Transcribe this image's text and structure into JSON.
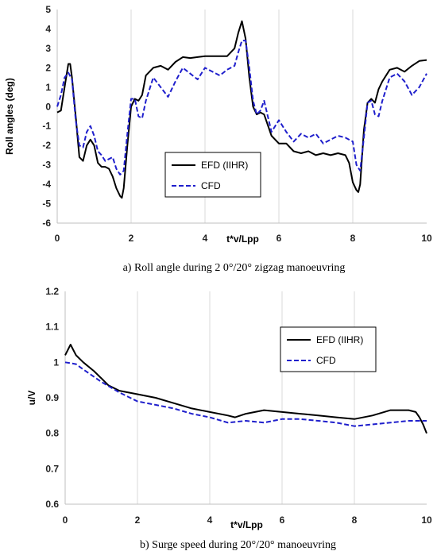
{
  "chart_data": [
    {
      "type": "line",
      "caption": "a) Roll angle during 2 0°/20° zigzag manoeuvring",
      "xlabel": "t*v/Lpp",
      "ylabel": "Roll angles (deg)",
      "xlim": [
        0,
        10
      ],
      "ylim": [
        -6,
        5
      ],
      "xticks": [
        "0",
        "2",
        "4",
        "6",
        "8",
        "10"
      ],
      "yticks": [
        "-6",
        "-5",
        "-4",
        "-3",
        "-2",
        "-1",
        "0",
        "1",
        "2",
        "3",
        "4",
        "5"
      ],
      "grid": "vertical",
      "legend_position": "lower-left",
      "series": [
        {
          "name": "EFD (IIHR)",
          "color": "#000000",
          "style": "solid",
          "x": [
            0,
            0.1,
            0.2,
            0.3,
            0.35,
            0.4,
            0.5,
            0.6,
            0.7,
            0.8,
            0.9,
            1.0,
            1.1,
            1.2,
            1.3,
            1.4,
            1.5,
            1.6,
            1.7,
            1.75,
            1.8,
            1.9,
            2.0,
            2.1,
            2.2,
            2.3,
            2.4,
            2.6,
            2.8,
            3.0,
            3.2,
            3.4,
            3.6,
            3.8,
            4.0,
            4.2,
            4.4,
            4.6,
            4.8,
            4.9,
            5.0,
            5.1,
            5.2,
            5.3,
            5.4,
            5.5,
            5.6,
            5.8,
            6.0,
            6.2,
            6.4,
            6.6,
            6.8,
            7.0,
            7.2,
            7.4,
            7.6,
            7.8,
            7.9,
            8.0,
            8.1,
            8.15,
            8.2,
            8.3,
            8.4,
            8.5,
            8.6,
            8.7,
            8.8,
            9.0,
            9.2,
            9.4,
            9.6,
            9.8,
            10.0
          ],
          "y": [
            -0.3,
            -0.2,
            1.0,
            2.2,
            2.2,
            1.5,
            -0.5,
            -2.6,
            -2.8,
            -2.0,
            -1.7,
            -2.0,
            -2.9,
            -3.1,
            -3.1,
            -3.2,
            -3.6,
            -4.2,
            -4.6,
            -4.7,
            -4.2,
            -2.0,
            0.0,
            0.4,
            0.3,
            0.6,
            1.6,
            2.0,
            2.1,
            1.9,
            2.3,
            2.55,
            2.5,
            2.55,
            2.6,
            2.6,
            2.6,
            2.6,
            3.0,
            3.8,
            4.4,
            3.5,
            1.5,
            0.0,
            -0.4,
            -0.3,
            -0.4,
            -1.5,
            -1.9,
            -1.9,
            -2.3,
            -2.4,
            -2.3,
            -2.5,
            -2.4,
            -2.5,
            -2.4,
            -2.5,
            -2.9,
            -3.9,
            -4.3,
            -4.4,
            -4.0,
            -1.2,
            0.2,
            0.4,
            0.2,
            0.9,
            1.3,
            1.9,
            2.0,
            1.8,
            2.1,
            2.35,
            2.4
          ]
        },
        {
          "name": "CFD",
          "color": "#1f1fcc",
          "style": "dashed",
          "x": [
            0,
            0.1,
            0.2,
            0.3,
            0.4,
            0.5,
            0.6,
            0.7,
            0.8,
            0.9,
            1.0,
            1.1,
            1.2,
            1.3,
            1.4,
            1.5,
            1.6,
            1.7,
            1.8,
            1.9,
            2.0,
            2.1,
            2.2,
            2.3,
            2.4,
            2.6,
            2.8,
            3.0,
            3.2,
            3.4,
            3.6,
            3.8,
            4.0,
            4.2,
            4.4,
            4.6,
            4.8,
            4.9,
            5.0,
            5.1,
            5.2,
            5.3,
            5.4,
            5.5,
            5.6,
            5.8,
            6.0,
            6.2,
            6.4,
            6.6,
            6.8,
            7.0,
            7.2,
            7.4,
            7.6,
            7.8,
            8.0,
            8.1,
            8.2,
            8.3,
            8.4,
            8.5,
            8.6,
            8.7,
            8.8,
            9.0,
            9.2,
            9.4,
            9.6,
            9.8,
            10.0
          ],
          "y": [
            0.0,
            0.6,
            1.5,
            1.75,
            1.4,
            -0.7,
            -2.0,
            -2.1,
            -1.3,
            -1.0,
            -1.5,
            -2.3,
            -2.5,
            -2.8,
            -2.7,
            -2.6,
            -3.2,
            -3.5,
            -3.3,
            -1.4,
            0.4,
            0.4,
            -0.5,
            -0.6,
            0.3,
            1.5,
            1.0,
            0.5,
            1.3,
            2.0,
            1.7,
            1.4,
            2.0,
            1.8,
            1.6,
            1.9,
            2.1,
            2.8,
            3.4,
            3.4,
            2.0,
            0.3,
            -0.4,
            -0.2,
            0.3,
            -1.3,
            -0.7,
            -1.3,
            -1.8,
            -1.4,
            -1.6,
            -1.4,
            -1.9,
            -1.7,
            -1.5,
            -1.6,
            -1.8,
            -3.0,
            -3.3,
            -1.6,
            0.2,
            0.3,
            -0.4,
            -0.5,
            0.3,
            1.5,
            1.7,
            1.3,
            0.6,
            1.0,
            1.7
          ]
        }
      ]
    },
    {
      "type": "line",
      "caption": "b) Surge speed during 20°/20° manoeuvring",
      "xlabel": "t*v/Lpp",
      "ylabel": "u/V",
      "xlim": [
        0,
        10
      ],
      "ylim": [
        0.6,
        1.2
      ],
      "xticks": [
        "0",
        "2",
        "4",
        "6",
        "8",
        "10"
      ],
      "yticks": [
        "0.6",
        "0.7",
        "0.8",
        "0.9",
        "1",
        "1.1",
        "1.2"
      ],
      "grid": "vertical",
      "legend_position": "top-right",
      "series": [
        {
          "name": "EFD (IIHR)",
          "color": "#000000",
          "style": "solid",
          "x": [
            0,
            0.1,
            0.15,
            0.2,
            0.3,
            0.5,
            0.8,
            1.0,
            1.2,
            1.5,
            2.0,
            2.5,
            3.0,
            3.5,
            4.0,
            4.5,
            4.7,
            5.0,
            5.5,
            6.0,
            6.5,
            7.0,
            7.5,
            8.0,
            8.5,
            9.0,
            9.5,
            9.7,
            9.8,
            9.9,
            10.0
          ],
          "y": [
            1.02,
            1.04,
            1.05,
            1.04,
            1.02,
            1.0,
            0.975,
            0.955,
            0.935,
            0.92,
            0.91,
            0.9,
            0.885,
            0.87,
            0.86,
            0.85,
            0.845,
            0.855,
            0.865,
            0.86,
            0.855,
            0.85,
            0.845,
            0.84,
            0.85,
            0.865,
            0.865,
            0.86,
            0.845,
            0.825,
            0.8
          ]
        },
        {
          "name": "CFD",
          "color": "#1f1fcc",
          "style": "dashed",
          "x": [
            0,
            0.3,
            0.5,
            1.0,
            1.5,
            2.0,
            2.5,
            3.0,
            3.5,
            4.0,
            4.5,
            5.0,
            5.5,
            6.0,
            6.5,
            7.0,
            7.5,
            8.0,
            8.5,
            9.0,
            9.5,
            10.0
          ],
          "y": [
            1.0,
            0.995,
            0.98,
            0.945,
            0.915,
            0.89,
            0.88,
            0.87,
            0.855,
            0.845,
            0.83,
            0.835,
            0.83,
            0.84,
            0.84,
            0.835,
            0.83,
            0.82,
            0.825,
            0.83,
            0.835,
            0.835
          ]
        }
      ]
    }
  ]
}
